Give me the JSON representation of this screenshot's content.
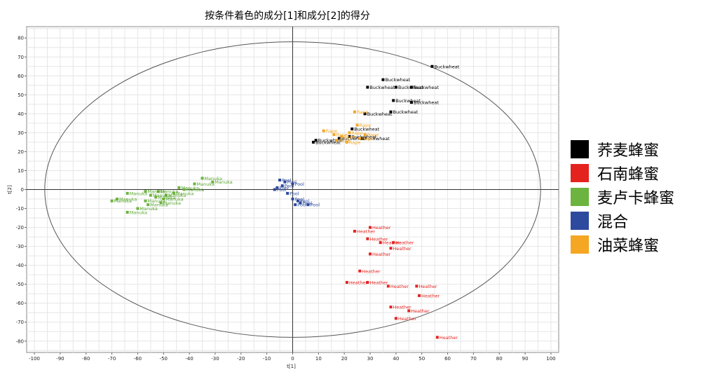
{
  "chart_data": {
    "type": "scatter",
    "title": "按条件着色的成分[1]和成分[2]的得分",
    "xlabel": "t[1]",
    "ylabel": "t[2]",
    "xlim": [
      -103,
      103
    ],
    "ylim": [
      -86,
      86
    ],
    "xticks": [
      -100,
      -90,
      -80,
      -70,
      -60,
      -50,
      -40,
      -30,
      -20,
      -10,
      0,
      10,
      20,
      30,
      40,
      50,
      60,
      70,
      80,
      90,
      100
    ],
    "yticks": [
      -80,
      -70,
      -60,
      -50,
      -40,
      -30,
      -20,
      -10,
      0,
      10,
      20,
      30,
      40,
      50,
      60,
      70,
      80
    ],
    "grid": true,
    "legend_position": "right",
    "ellipse": {
      "cx": 0,
      "cy": 0,
      "rx": 96,
      "ry": 78
    },
    "series": [
      {
        "name": "荞麦蜂蜜",
        "color": "#000000",
        "point_label": "Buckwheat",
        "points": [
          [
            54,
            65
          ],
          [
            35,
            58
          ],
          [
            29,
            54
          ],
          [
            40,
            54
          ],
          [
            46,
            54
          ],
          [
            39,
            47
          ],
          [
            46,
            46
          ],
          [
            38,
            41
          ],
          [
            28,
            40
          ],
          [
            23,
            32
          ],
          [
            22,
            28
          ],
          [
            27,
            27
          ],
          [
            9,
            26
          ],
          [
            8,
            25
          ],
          [
            18,
            27
          ]
        ]
      },
      {
        "name": "石南蜂蜜",
        "color": "#e4231f",
        "point_label": "Heather",
        "points": [
          [
            30,
            -20
          ],
          [
            24,
            -22
          ],
          [
            29,
            -26
          ],
          [
            34,
            -28
          ],
          [
            39,
            -28
          ],
          [
            38,
            -31
          ],
          [
            30,
            -34
          ],
          [
            26,
            -43
          ],
          [
            29,
            -49
          ],
          [
            21,
            -49
          ],
          [
            37,
            -51
          ],
          [
            48,
            -51
          ],
          [
            49,
            -56
          ],
          [
            38,
            -62
          ],
          [
            45,
            -64
          ],
          [
            40,
            -68
          ],
          [
            56,
            -78
          ]
        ]
      },
      {
        "name": "麦卢卡蜂蜜",
        "color": "#6db33f",
        "point_label": "Manuka",
        "points": [
          [
            -35,
            6
          ],
          [
            -31,
            4
          ],
          [
            -38,
            3
          ],
          [
            -44,
            1
          ],
          [
            -42,
            0
          ],
          [
            -52,
            -1
          ],
          [
            -57,
            -1
          ],
          [
            -64,
            -2
          ],
          [
            -49,
            -3
          ],
          [
            -53,
            -4
          ],
          [
            -68,
            -5
          ],
          [
            -57,
            -6
          ],
          [
            -51,
            -7
          ],
          [
            -56,
            -8
          ],
          [
            -60,
            -10
          ],
          [
            -64,
            -12
          ],
          [
            -70,
            -6
          ],
          [
            -46,
            -2
          ],
          [
            -55,
            -3
          ],
          [
            -50,
            -5
          ]
        ]
      },
      {
        "name": "混合",
        "color": "#2e4a9e",
        "point_label": "Pool",
        "points": [
          [
            -5,
            5
          ],
          [
            -3,
            4
          ],
          [
            0,
            3
          ],
          [
            -6,
            1
          ],
          [
            -4,
            2
          ],
          [
            -7,
            0
          ],
          [
            -2,
            -2
          ],
          [
            0,
            -5
          ],
          [
            2,
            -6
          ],
          [
            3,
            -7
          ],
          [
            6,
            -8
          ],
          [
            1,
            -8
          ]
        ]
      },
      {
        "name": "油菜蜂蜜",
        "color": "#f5a623",
        "point_label": "Rape",
        "points": [
          [
            24,
            41
          ],
          [
            25,
            34
          ],
          [
            12,
            31
          ],
          [
            16,
            29
          ],
          [
            22,
            30
          ],
          [
            19,
            28
          ],
          [
            17,
            26
          ],
          [
            21,
            25
          ],
          [
            26,
            27
          ],
          [
            28,
            29
          ]
        ]
      }
    ]
  }
}
